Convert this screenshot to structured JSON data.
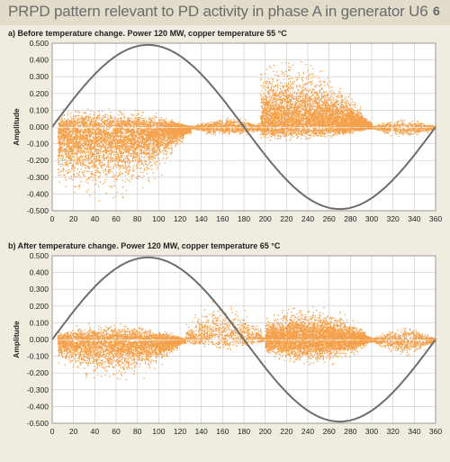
{
  "header": {
    "title": "PRPD pattern relevant to PD activity in phase A in generator U6",
    "figure_number": "6"
  },
  "colors": {
    "points": "#f5a04a",
    "sine": "#6d6d6d",
    "grid": "#c8c8c8",
    "header_bg": "#e2dccb",
    "page_bg": "#f1ece0"
  },
  "chart_data": [
    {
      "type": "scatter",
      "title": "a) Before temperature change. Power 120 MW, copper temperature 55 °C",
      "ylabel": "Amplitude",
      "xlabel": "",
      "xlim": [
        0,
        360
      ],
      "ylim": [
        -0.5,
        0.5
      ],
      "xticks": [
        "0",
        "20",
        "40",
        "60",
        "80",
        "100",
        "120",
        "140",
        "160",
        "180",
        "200",
        "220",
        "240",
        "260",
        "280",
        "300",
        "320",
        "340",
        "360"
      ],
      "yticks": [
        "0.500",
        "0.400",
        "0.300",
        "0.200",
        "0.100",
        "0.000",
        "-0.100",
        "-0.200",
        "-0.300",
        "-0.400",
        "-0.500"
      ],
      "grid": true,
      "reference_sine": {
        "amplitude": 0.49,
        "period_deg": 360
      },
      "clusters": [
        {
          "x_range": [
            5,
            130
          ],
          "center": 45,
          "pos_max": 0.12,
          "neg_max": 0.44,
          "density": 5500
        },
        {
          "x_range": [
            130,
            195
          ],
          "center": 165,
          "pos_max": 0.06,
          "neg_max": 0.05,
          "density": 900
        },
        {
          "x_range": [
            195,
            300
          ],
          "center": 222,
          "pos_max": 0.4,
          "neg_max": 0.08,
          "density": 5200
        },
        {
          "x_range": [
            300,
            360
          ],
          "center": 330,
          "pos_max": 0.05,
          "neg_max": 0.06,
          "density": 600
        }
      ]
    },
    {
      "type": "scatter",
      "title": "b) After temperature change. Power 120 MW, copper temperature 65 °C",
      "ylabel": "Amplitude",
      "xlabel": "",
      "xlim": [
        0,
        360
      ],
      "ylim": [
        -0.5,
        0.5
      ],
      "xticks": [
        "0",
        "20",
        "40",
        "60",
        "80",
        "100",
        "120",
        "140",
        "160",
        "180",
        "200",
        "220",
        "240",
        "260",
        "280",
        "300",
        "320",
        "340",
        "360"
      ],
      "yticks": [
        "0.500",
        "0.400",
        "0.300",
        "0.200",
        "0.100",
        "0.000",
        "-0.100",
        "-0.200",
        "-0.300",
        "-0.400",
        "-0.500"
      ],
      "grid": true,
      "reference_sine": {
        "amplitude": 0.49,
        "period_deg": 360
      },
      "clusters": [
        {
          "x_range": [
            5,
            125
          ],
          "center": 55,
          "pos_max": 0.1,
          "neg_max": 0.24,
          "density": 4000
        },
        {
          "x_range": [
            125,
            200
          ],
          "center": 160,
          "pos_max": 0.25,
          "neg_max": 0.06,
          "density": 900
        },
        {
          "x_range": [
            200,
            300
          ],
          "center": 240,
          "pos_max": 0.2,
          "neg_max": 0.15,
          "density": 5000
        },
        {
          "x_range": [
            300,
            360
          ],
          "center": 330,
          "pos_max": 0.08,
          "neg_max": 0.1,
          "density": 800
        }
      ]
    }
  ]
}
